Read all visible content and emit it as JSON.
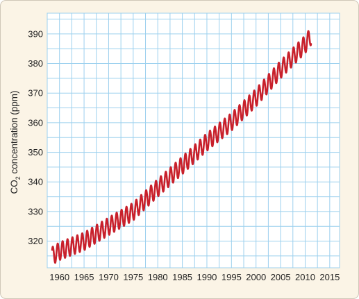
{
  "chart_data": {
    "type": "line",
    "title": "",
    "xlabel": "",
    "ylabel": {
      "prefix": "CO",
      "subscript": "2",
      "suffix": " concentration (ppm)"
    },
    "xlim": [
      1957.5,
      2017
    ],
    "ylim": [
      311,
      397
    ],
    "x_ticks": [
      1960,
      1965,
      1970,
      1975,
      1980,
      1985,
      1990,
      1995,
      2000,
      2005,
      2010,
      2015
    ],
    "y_ticks": [
      320,
      330,
      340,
      350,
      360,
      370,
      380,
      390
    ],
    "grid": true,
    "x_grid_step": 2.5,
    "y_grid_step": 5,
    "legend": "none",
    "series": [
      {
        "color": "#c8202b",
        "seasonal_amplitude_ppm": 3.0,
        "trend": {
          "x": [
            1958.5,
            1960,
            1965,
            1970,
            1975,
            1980,
            1985,
            1990,
            1995,
            2000,
            2005,
            2010,
            2011.2
          ],
          "y": [
            315.0,
            316.6,
            319.9,
            325.0,
            330.0,
            338.0,
            345.6,
            353.5,
            360.3,
            368.5,
            378.0,
            386.5,
            389.3
          ]
        }
      }
    ]
  }
}
